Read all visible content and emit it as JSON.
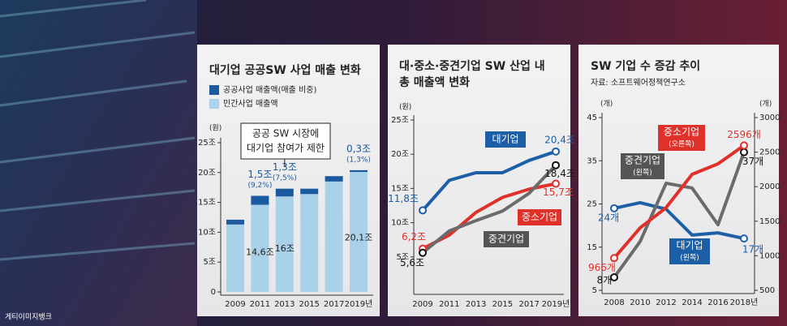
{
  "photo_credit": "게티이미지뱅크",
  "chart_data": [
    {
      "type": "bar",
      "stacked": true,
      "title": "대기업 공공SW 사업 매출 변화",
      "y_unit": "(원)",
      "categories": [
        "2009",
        "2011",
        "2013",
        "2015",
        "2017",
        "2019년"
      ],
      "series": [
        {
          "name": "공공사업 매출액(매출 비중)",
          "color": "#1b5a9e",
          "values": [
            0.8,
            1.5,
            1.3,
            0.9,
            0.9,
            0.3
          ],
          "value_labels": [
            null,
            "1,5조",
            "1,3조",
            null,
            null,
            "0,3조"
          ],
          "share_labels": [
            null,
            "(9,2%)",
            "(7,5%)",
            null,
            null,
            "(1,3%)"
          ]
        },
        {
          "name": "민간사업 매출액",
          "color": "#a9d2ea",
          "values": [
            11.3,
            14.6,
            16,
            16.4,
            18.5,
            20.1
          ],
          "value_labels": [
            null,
            "14,6조",
            "16조",
            null,
            null,
            "20,1조"
          ]
        }
      ],
      "ylim": [
        0,
        25
      ],
      "yticks": [
        0,
        {
          "value": 5,
          "label": "5조"
        },
        {
          "value": 10,
          "label": "10조"
        },
        {
          "value": 15,
          "label": "15조"
        },
        {
          "value": 20,
          "label": "20조"
        },
        {
          "value": 25,
          "label": "25조"
        }
      ],
      "annotation": [
        "공공 SW 시장에",
        "대기업 참여가 제한"
      ]
    },
    {
      "type": "line",
      "title": [
        "대·중소·중견기업 SW 산업 내",
        "총 매출액 변화"
      ],
      "y_unit": "(원)",
      "categories": [
        "2009",
        "2011",
        "2013",
        "2015",
        "2017",
        "2019년"
      ],
      "series": [
        {
          "name": "대기업",
          "color": "#1d5fa6",
          "values": [
            11.8,
            16.2,
            17.3,
            17.3,
            19.1,
            20.4
          ],
          "value_labels": [
            "11,8조",
            null,
            null,
            null,
            null,
            "20,4조"
          ]
        },
        {
          "name": "중소기업",
          "color": "#e0302a",
          "values": [
            6.2,
            8.2,
            11.5,
            13.7,
            14.9,
            15.7
          ],
          "value_labels": [
            "6,2조",
            null,
            null,
            null,
            null,
            "15,7조"
          ]
        },
        {
          "name": "중견기업",
          "color": "#6b6b6b",
          "values": [
            5.6,
            8.8,
            10.3,
            11.7,
            14.3,
            18.4
          ],
          "value_labels": [
            "5,6조",
            null,
            null,
            null,
            null,
            "18,4조"
          ]
        }
      ],
      "ylim": [
        0,
        25
      ],
      "yticks": [
        {
          "value": 5,
          "label": "5조"
        },
        {
          "value": 10,
          "label": "10조"
        },
        {
          "value": 15,
          "label": "15조"
        },
        {
          "value": 20,
          "label": "20조"
        },
        {
          "value": 25,
          "label": "25조"
        }
      ]
    },
    {
      "type": "line",
      "title": "SW 기업 수 증감 추이",
      "subtitle": "자료: 소프트웨어정책연구소",
      "y_unit": "(개)",
      "y2_unit": "(개)",
      "categories": [
        "2008",
        "2010",
        "2012",
        "2014",
        "2016",
        "2018년"
      ],
      "series": [
        {
          "name": "대기업",
          "note": "(왼쪽)",
          "color": "#1d5fa6",
          "values": [
            24,
            25.3,
            23.8,
            17.8,
            18.3,
            17
          ],
          "value_labels": [
            "24개",
            null,
            null,
            null,
            null,
            "17개"
          ]
        },
        {
          "name": "중견기업",
          "note": "(왼쪽)",
          "color": "#6b6b6b",
          "values": [
            8,
            16.3,
            29.8,
            28.7,
            20.2,
            37
          ],
          "value_labels": [
            "8개",
            null,
            null,
            null,
            null,
            "37개"
          ]
        },
        {
          "name": "중소기업",
          "note": "(오른쪽)",
          "color": "#e0302a",
          "axis": "y2",
          "values": [
            966,
            1404,
            1697,
            2178,
            2331,
            2596
          ],
          "value_labels": [
            "966개",
            null,
            null,
            null,
            null,
            "2596개"
          ]
        }
      ],
      "ylim": [
        5,
        45
      ],
      "yticks": [
        5,
        15,
        25,
        35,
        45
      ],
      "y2lim": [
        500,
        3000
      ],
      "y2ticks": [
        500,
        1000,
        1500,
        2000,
        2500,
        3000
      ]
    }
  ]
}
